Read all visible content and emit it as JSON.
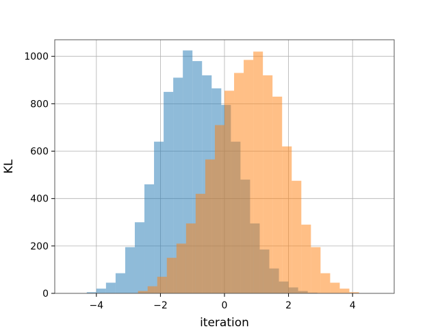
{
  "chart_data": {
    "type": "histogram",
    "title": "",
    "xlabel": "iteration",
    "ylabel": "KL",
    "xlim": [
      -5.3,
      5.3
    ],
    "ylim": [
      0,
      1070
    ],
    "grid": true,
    "legend": "none",
    "xticks": [
      -4,
      -2,
      0,
      2,
      4
    ],
    "xtick_labels": [
      "−4",
      "−2",
      "0",
      "2",
      "4"
    ],
    "yticks": [
      0,
      200,
      400,
      600,
      800,
      1000
    ],
    "series": [
      {
        "color": "#1f77b4",
        "alpha": 0.5,
        "bin_width": 0.3,
        "bins_start": [
          -4.3,
          -4.0,
          -3.7,
          -3.4,
          -3.1,
          -2.8,
          -2.5,
          -2.2,
          -1.9,
          -1.6,
          -1.3,
          -1.0,
          -0.7,
          -0.4,
          -0.1,
          0.2,
          0.5,
          0.8,
          1.1,
          1.4,
          1.7,
          2.0,
          2.3,
          2.6
        ],
        "counts": [
          5,
          20,
          45,
          85,
          195,
          300,
          460,
          640,
          850,
          910,
          1025,
          980,
          920,
          865,
          795,
          640,
          480,
          295,
          185,
          105,
          50,
          25,
          10,
          3
        ]
      },
      {
        "color": "#ff7f0e",
        "alpha": 0.5,
        "bin_width": 0.3,
        "bins_start": [
          -2.7,
          -2.4,
          -2.1,
          -1.8,
          -1.5,
          -1.2,
          -0.9,
          -0.6,
          -0.3,
          0.0,
          0.3,
          0.6,
          0.9,
          1.2,
          1.5,
          1.8,
          2.1,
          2.4,
          2.7,
          3.0,
          3.3,
          3.6,
          3.9
        ],
        "counts": [
          10,
          30,
          70,
          150,
          210,
          295,
          420,
          565,
          710,
          855,
          930,
          985,
          1020,
          920,
          830,
          620,
          475,
          290,
          195,
          85,
          45,
          20,
          5
        ]
      }
    ]
  }
}
